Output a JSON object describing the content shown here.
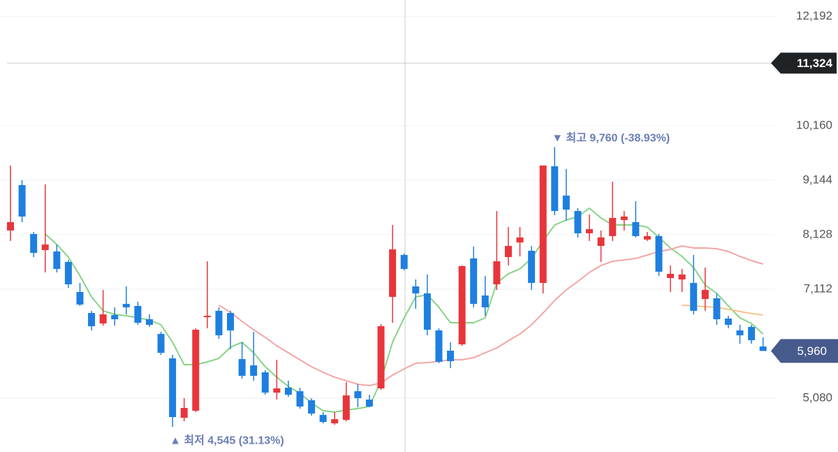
{
  "chart_data": {
    "type": "candlestick",
    "ylim": [
      4077,
      12501
    ],
    "yticks": [
      {
        "value": 12192,
        "label": "12,192"
      },
      {
        "value": 10160,
        "label": "10,160"
      },
      {
        "value": 9144,
        "label": "9,144"
      },
      {
        "value": 8128,
        "label": "8,128"
      },
      {
        "value": 7112,
        "label": "7,112"
      },
      {
        "value": 5080,
        "label": "5,080"
      }
    ],
    "grid": true,
    "up_color": "#e8353b",
    "down_color": "#1e7fe0",
    "open": [
      8205,
      9051,
      8140,
      7840,
      7814,
      7619,
      7059,
      6668,
      6473,
      6629,
      6838,
      6799,
      6551,
      6278,
      5822,
      4715,
      4846,
      6590,
      6708,
      6668,
      5809,
      5692,
      5562,
      5184,
      5275,
      5210,
      5041,
      4768,
      4611,
      4676,
      5210,
      5054,
      5262,
      6968,
      7749,
      7163,
      7033,
      6343,
      5965,
      6083,
      7684,
      6994,
      7202,
      7710,
      7983,
      7827,
      7228,
      9403,
      8856,
      8569,
      8153,
      7918,
      8101,
      8400,
      8361,
      8036,
      8101,
      7319,
      7293,
      7228,
      6929,
      6942,
      6564,
      6343,
      6408,
      6043
    ],
    "high": [
      9416,
      9142,
      8179,
      9064,
      7944,
      7658,
      7228,
      6708,
      7098,
      6773,
      7163,
      6877,
      6642,
      6317,
      5887,
      5080,
      6382,
      7632,
      6773,
      6708,
      6122,
      6317,
      5601,
      5796,
      5406,
      5275,
      5080,
      4820,
      4820,
      5379,
      5340,
      5145,
      6460,
      8309,
      7775,
      7293,
      7385,
      6382,
      6122,
      7554,
      7905,
      7359,
      8569,
      8270,
      8270,
      7918,
      9416,
      9760,
      9351,
      8621,
      8504,
      8205,
      9116,
      8569,
      8752,
      8179,
      8140,
      7554,
      7489,
      7749,
      7515,
      7033,
      6616,
      6447,
      6447,
      6213
    ],
    "low": [
      8010,
      8361,
      7710,
      7424,
      7424,
      7137,
      6799,
      6343,
      6434,
      6434,
      6642,
      6447,
      6408,
      5887,
      4545,
      4650,
      4820,
      6382,
      6187,
      5991,
      5445,
      5406,
      5145,
      5054,
      5106,
      4885,
      4754,
      4611,
      4585,
      4650,
      4911,
      4911,
      5236,
      6486,
      7463,
      6747,
      6252,
      5731,
      5640,
      6057,
      6773,
      6616,
      7098,
      7554,
      7723,
      7098,
      7033,
      8491,
      8387,
      8075,
      8010,
      7619,
      8010,
      8205,
      8075,
      8010,
      7359,
      7059,
      7059,
      6642,
      6708,
      6447,
      6382,
      6096,
      6096,
      5965
    ],
    "close": [
      8361,
      8465,
      7788,
      7944,
      7489,
      7202,
      6825,
      6421,
      6642,
      6551,
      6773,
      6486,
      6447,
      5926,
      4728,
      4898,
      6356,
      6616,
      6252,
      6343,
      5497,
      5497,
      5184,
      5262,
      5145,
      4924,
      4794,
      4637,
      4689,
      5132,
      5080,
      4924,
      6421,
      7853,
      7489,
      7033,
      6356,
      5757,
      5770,
      7541,
      6838,
      6773,
      7632,
      7918,
      8075,
      7228,
      9416,
      8569,
      8595,
      8153,
      8231,
      8075,
      8439,
      8465,
      8101,
      8101,
      7437,
      7398,
      7385,
      6708,
      7098,
      6551,
      6447,
      6252,
      6161,
      5960
    ],
    "lines": [
      {
        "color": "#86d486",
        "values": [
          null,
          null,
          null,
          8140,
          7944,
          7710,
          7359,
          6968,
          6708,
          6642,
          6616,
          6577,
          6538,
          6447,
          6122,
          5705,
          5705,
          5757,
          5822,
          6030,
          6122,
          5926,
          5666,
          5471,
          5301,
          5171,
          4989,
          4846,
          4820,
          4859,
          4885,
          4924,
          5406,
          6122,
          6577,
          6968,
          7007,
          6773,
          6486,
          6486,
          6486,
          6577,
          7228,
          7398,
          7489,
          7684,
          8010,
          8309,
          8400,
          8465,
          8621,
          8439,
          8309,
          8309,
          8309,
          8270,
          8075,
          7879,
          7723,
          7515,
          7189,
          7033,
          6799,
          6577,
          6473,
          6278
        ]
      },
      {
        "color": "#f5a5a5",
        "values": [
          null,
          null,
          null,
          null,
          null,
          null,
          null,
          null,
          null,
          null,
          null,
          null,
          null,
          null,
          null,
          null,
          null,
          null,
          6812,
          6681,
          6512,
          6356,
          6213,
          6057,
          5926,
          5796,
          5666,
          5562,
          5471,
          5406,
          5340,
          5314,
          5366,
          5510,
          5627,
          5731,
          5744,
          5770,
          5796,
          5796,
          5835,
          5926,
          6017,
          6148,
          6278,
          6447,
          6668,
          6903,
          7098,
          7254,
          7424,
          7554,
          7632,
          7658,
          7684,
          7749,
          7814,
          7853,
          7918,
          7879,
          7879,
          7866,
          7814,
          7723,
          7645,
          7580
        ]
      },
      {
        "color": "#f6c48e",
        "values": [
          null,
          null,
          null,
          null,
          null,
          null,
          null,
          null,
          null,
          null,
          null,
          null,
          null,
          null,
          null,
          null,
          null,
          null,
          null,
          null,
          null,
          null,
          null,
          null,
          null,
          null,
          null,
          null,
          null,
          null,
          null,
          null,
          null,
          null,
          null,
          null,
          null,
          null,
          null,
          null,
          null,
          null,
          null,
          null,
          null,
          null,
          null,
          null,
          null,
          null,
          null,
          null,
          null,
          null,
          null,
          null,
          null,
          null,
          6812,
          6799,
          6786,
          6773,
          6734,
          6695,
          6656,
          6630
        ]
      }
    ],
    "max_label": "▼ 최고 9,760 (-38.93%)",
    "min_label": "▲ 최저 4,545 (31.13%)",
    "crosshair": {
      "value": 11324,
      "label": "11,324"
    },
    "last_price": {
      "value": 5960,
      "label": "5,960"
    }
  }
}
